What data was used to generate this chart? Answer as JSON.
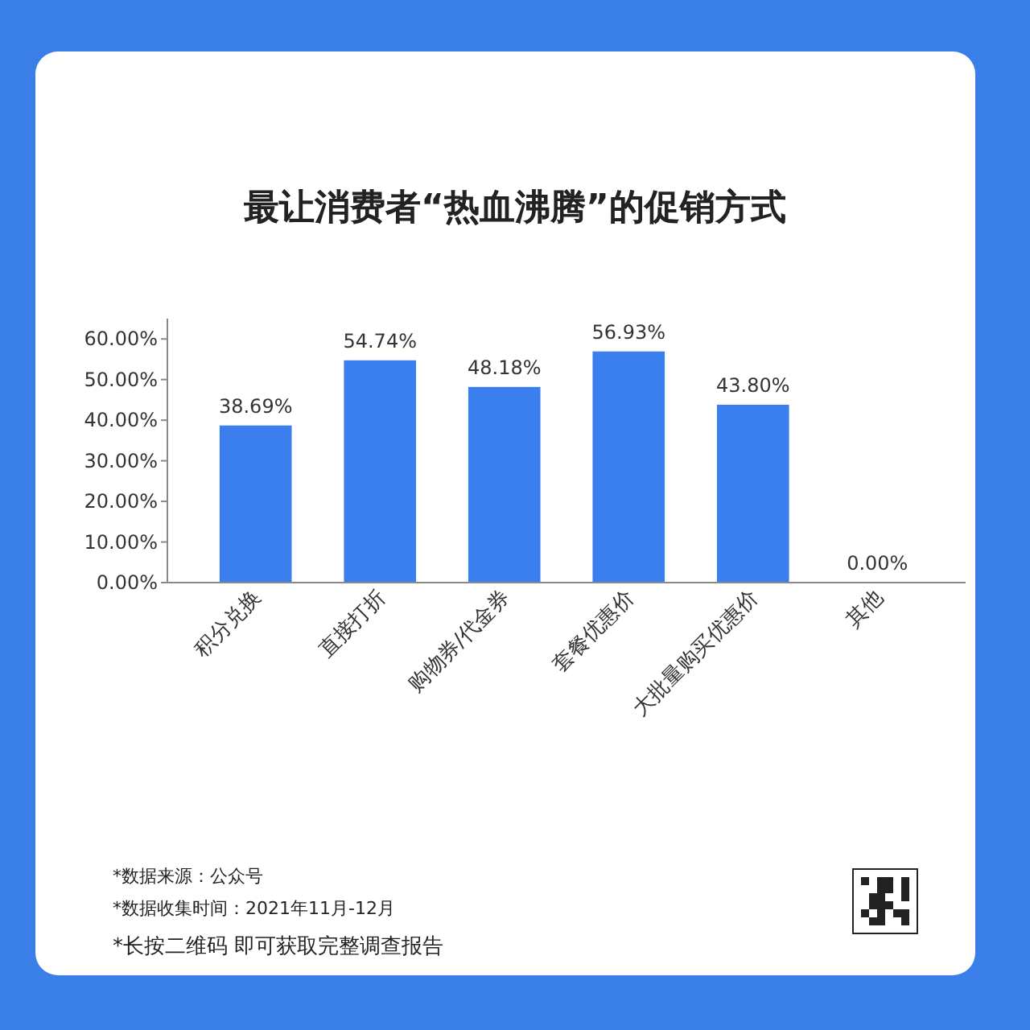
{
  "chart_data": {
    "type": "bar",
    "title": "最让消费者“热血沸腾”的促销方式",
    "categories": [
      "积分兑换",
      "直接打折",
      "购物券/代金券",
      "套餐优惠价",
      "大批量购买优惠价",
      "其他"
    ],
    "values": [
      38.69,
      54.74,
      48.18,
      56.93,
      43.8,
      0
    ],
    "value_labels": [
      "38.69%",
      "54.74%",
      "48.18%",
      "56.93%",
      "43.80%",
      "0.00%"
    ],
    "color": "#3b7eee",
    "ylim": [
      0,
      65
    ],
    "yticks": [
      {
        "value": 0,
        "label": "0.00%"
      },
      {
        "value": 10,
        "label": "10.00%"
      },
      {
        "value": 20,
        "label": "20.00%"
      },
      {
        "value": 30,
        "label": "30.00%"
      },
      {
        "value": 40,
        "label": "40.00%"
      },
      {
        "value": 50,
        "label": "50.00%"
      },
      {
        "value": 60,
        "label": "60.00%"
      }
    ],
    "annotations": [
      "*数据来源：公众号",
      "*数据收集时间：2021年11月-12月",
      "*长按二维码 即可获取完整调查报告"
    ]
  }
}
